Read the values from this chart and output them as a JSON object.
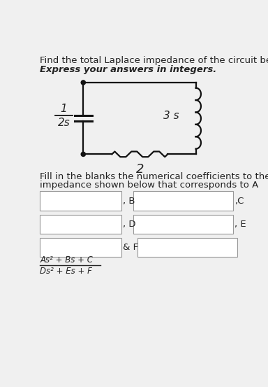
{
  "title_line1": "Find the total Laplace impedance of the circuit below.",
  "title_line2": "Express your answers in integers.",
  "capacitor_label_num": "1",
  "capacitor_label_den": "2s",
  "resistor_label": "2",
  "inductor_label": "3 s",
  "fill_text1": "Fill in the blanks the numerical coefficients to the total",
  "fill_text2": "impedance shown below that corresponds to A",
  "label_B": ", B",
  "label_C": ",C",
  "label_D": ", D",
  "label_E": ", E",
  "label_F": "& F",
  "formula_num": "As² + Bs + C",
  "formula_den": "Ds² + Es + F",
  "bg_color": "#f0f0f0",
  "box_color": "#ffffff",
  "box_edge": "#999999",
  "text_color": "#222222",
  "circuit_color": "#111111",
  "font_size_title": 9.5,
  "font_size_body": 9.5,
  "font_size_label": 9.5,
  "font_size_formula": 8.5
}
